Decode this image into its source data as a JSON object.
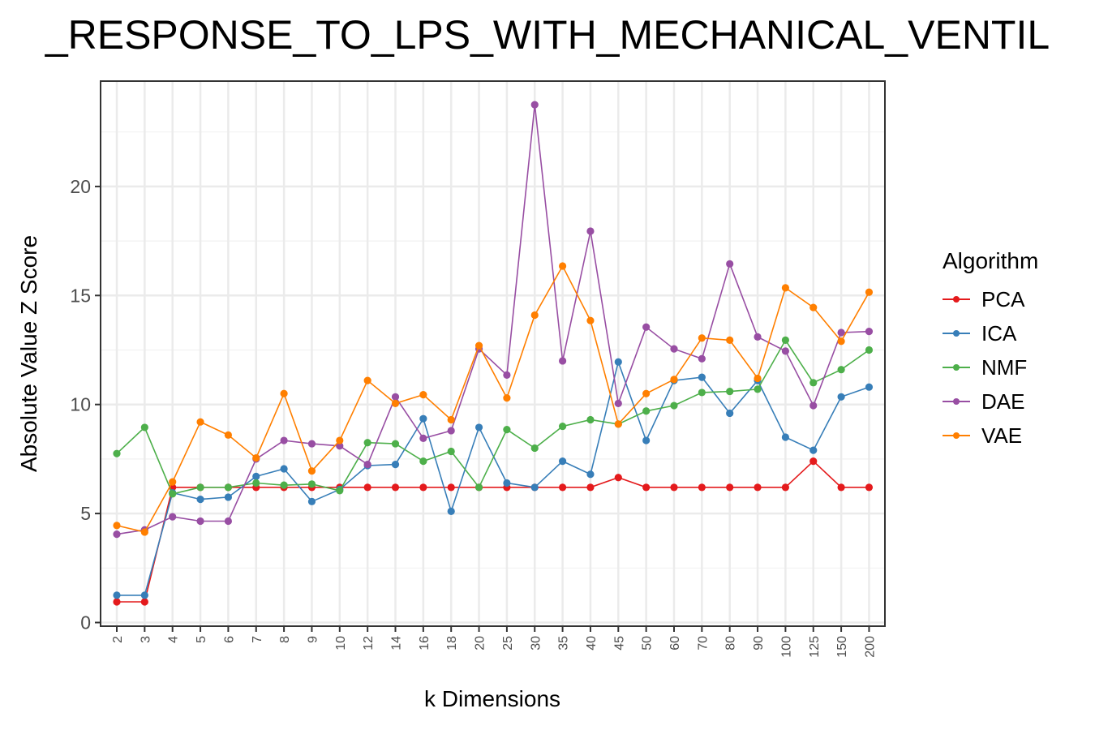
{
  "chart_data": {
    "type": "line",
    "title": "_RESPONSE_TO_LPS_WITH_MECHANICAL_VENTIL",
    "xlabel": "k Dimensions",
    "ylabel": "Absolute Value Z Score",
    "categories": [
      "2",
      "3",
      "4",
      "5",
      "6",
      "7",
      "8",
      "9",
      "10",
      "12",
      "14",
      "16",
      "18",
      "20",
      "25",
      "30",
      "35",
      "40",
      "45",
      "50",
      "60",
      "70",
      "80",
      "90",
      "100",
      "125",
      "150",
      "200"
    ],
    "ylim": [
      0,
      24.5
    ],
    "yticks": [
      0,
      5,
      10,
      15,
      20
    ],
    "grid": true,
    "legend": {
      "title": "Algorithm",
      "position": "right"
    },
    "series": [
      {
        "name": "PCA",
        "color": "#E41A1C",
        "values": [
          0.95,
          0.95,
          6.2,
          6.2,
          6.2,
          6.2,
          6.2,
          6.2,
          6.2,
          6.2,
          6.2,
          6.2,
          6.2,
          6.2,
          6.2,
          6.2,
          6.2,
          6.2,
          6.65,
          6.2,
          6.2,
          6.2,
          6.2,
          6.2,
          6.2,
          7.4,
          6.2,
          6.2
        ]
      },
      {
        "name": "ICA",
        "color": "#377EB8",
        "values": [
          1.25,
          1.25,
          5.95,
          5.65,
          5.75,
          6.7,
          7.05,
          5.55,
          6.1,
          7.2,
          7.25,
          9.35,
          5.1,
          8.95,
          6.4,
          6.2,
          7.4,
          6.8,
          11.95,
          8.35,
          11.1,
          11.25,
          9.6,
          11.1,
          8.5,
          7.9,
          10.35,
          10.8
        ]
      },
      {
        "name": "NMF",
        "color": "#4DAF4A",
        "values": [
          7.75,
          8.95,
          5.9,
          6.2,
          6.2,
          6.4,
          6.3,
          6.35,
          6.05,
          8.25,
          8.2,
          7.4,
          7.85,
          6.2,
          8.85,
          8.0,
          9.0,
          9.3,
          9.1,
          9.7,
          9.95,
          10.55,
          10.6,
          10.7,
          12.95,
          11.0,
          11.6,
          12.5
        ]
      },
      {
        "name": "DAE",
        "color": "#984EA3",
        "values": [
          4.05,
          4.25,
          4.85,
          4.65,
          4.65,
          7.5,
          8.35,
          8.2,
          8.1,
          7.25,
          10.35,
          8.45,
          8.8,
          12.55,
          11.35,
          23.75,
          12.0,
          17.95,
          10.05,
          13.55,
          12.55,
          12.1,
          16.45,
          13.1,
          12.45,
          9.95,
          13.3,
          13.35
        ]
      },
      {
        "name": "VAE",
        "color": "#FF7F00",
        "values": [
          4.45,
          4.15,
          6.45,
          9.2,
          8.6,
          7.55,
          10.5,
          6.95,
          8.35,
          11.1,
          10.05,
          10.45,
          9.3,
          12.7,
          10.3,
          14.1,
          16.35,
          13.85,
          9.1,
          10.5,
          11.15,
          13.05,
          12.95,
          11.2,
          15.35,
          14.45,
          12.9,
          15.15
        ]
      }
    ]
  }
}
